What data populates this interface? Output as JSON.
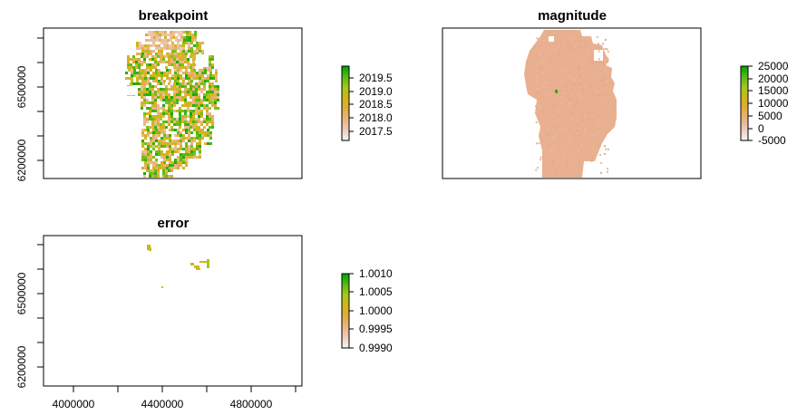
{
  "colors": {
    "ramp": [
      "#f2f2f2",
      "#eec9b7",
      "#e9b580",
      "#e1ae3a",
      "#d2b419",
      "#a6c81a",
      "#5cbb17",
      "#00a600"
    ],
    "magnitude_fill": "#e8b090",
    "frame": "#000000"
  },
  "chart_data": [
    {
      "type": "heatmap",
      "title": "breakpoint",
      "axes": {
        "x_ticks_shown": false,
        "y_ticks": [
          "6500000",
          "6200000"
        ],
        "y_range": [
          6120000,
          6780000
        ],
        "x_range": [
          3900000,
          4940000
        ]
      },
      "legend": {
        "labels": [
          "2019.5",
          "2019.0",
          "2018.5",
          "2018.0",
          "2017.5"
        ],
        "range": [
          2017.2,
          2019.75
        ]
      }
    },
    {
      "type": "heatmap",
      "title": "magnitude",
      "axes": {
        "x_ticks_shown": false,
        "y_ticks_shown": false
      },
      "legend": {
        "labels": [
          "25000",
          "20000",
          "15000",
          "10000",
          "5000",
          "0",
          "-5000"
        ],
        "range": [
          -5000,
          25000
        ]
      }
    },
    {
      "type": "heatmap",
      "title": "error",
      "axes": {
        "x_ticks": [
          "4000000",
          "4400000",
          "4800000"
        ],
        "y_ticks": [
          "6500000",
          "6200000"
        ],
        "x_range": [
          3900000,
          4940000
        ],
        "y_range": [
          6120000,
          6780000
        ]
      },
      "legend": {
        "labels": [
          "1.0010",
          "1.0005",
          "1.0000",
          "0.9995",
          "0.9990"
        ],
        "range": [
          0.999,
          1.001
        ]
      }
    }
  ]
}
